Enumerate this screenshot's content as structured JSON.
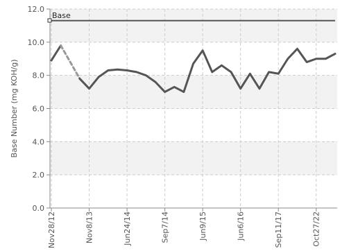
{
  "chart_data": {
    "type": "line",
    "ylabel": "Base Number (mg KOH/g)",
    "ylim": [
      0,
      12
    ],
    "yticks": [
      "0.0",
      "2.0",
      "4.0",
      "6.0",
      "8.0",
      "10.0",
      "12.0"
    ],
    "xtick_labels": [
      "Nov28/12",
      "Nov8/13",
      "Jun24/14",
      "Sep7/14",
      "Jun9/15",
      "Jun6/16",
      "Sep11/17",
      "Oct27/22"
    ],
    "grid": true,
    "legend": {
      "position": "top-left",
      "entry": "Base"
    },
    "colors": {
      "series": "#555555",
      "dashed_segment": "#999999",
      "band": "#f2f2f2",
      "grid": "#cccccc",
      "axis": "#888888"
    },
    "series": [
      {
        "name": "Base",
        "values": [
          11.3,
          11.3,
          11.3,
          11.3,
          11.3,
          11.3,
          11.3,
          11.3,
          11.3,
          11.3,
          11.3,
          11.3,
          11.3,
          11.3,
          11.3,
          11.3,
          11.3,
          11.3,
          11.3,
          11.3,
          11.3,
          11.3,
          11.3,
          11.3,
          11.3,
          11.3,
          11.3,
          11.3,
          11.3,
          11.3,
          11.3,
          11.3
        ]
      },
      {
        "name": "",
        "values": [
          8.9,
          9.8,
          8.8,
          7.8,
          7.2,
          7.9,
          8.3,
          8.35,
          8.3,
          8.2,
          8.0,
          7.6,
          7.0,
          7.3,
          7.0,
          8.7,
          9.5,
          8.2,
          8.6,
          8.2,
          7.2,
          8.1,
          7.2,
          8.2,
          8.1,
          9.0,
          9.6,
          8.8,
          9.0,
          9.0,
          9.3
        ],
        "dashed_segments": [
          [
            1,
            3
          ]
        ]
      }
    ]
  }
}
